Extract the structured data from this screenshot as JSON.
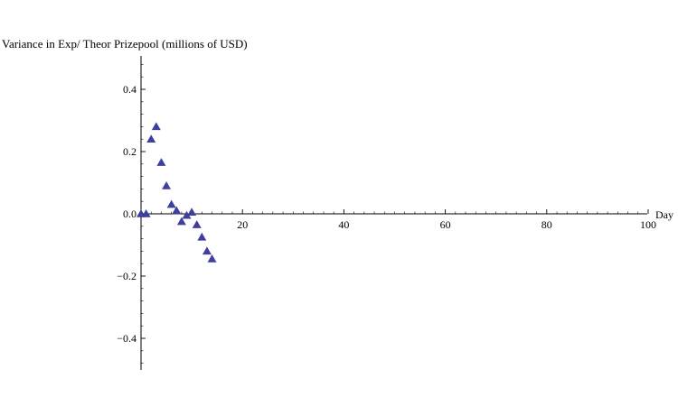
{
  "chart_data": {
    "type": "scatter",
    "title": "",
    "ylabel": "Variance in Exp/ Theor Prizepool (millions of USD)",
    "xlabel": "Day",
    "xlim": [
      0,
      100
    ],
    "ylim": [
      -0.5,
      0.5
    ],
    "x_ticks": [
      20,
      40,
      60,
      80,
      100
    ],
    "x_tick_labels": [
      "20",
      "40",
      "60",
      "80",
      "100"
    ],
    "y_ticks": [
      0.4,
      0.2,
      0.0,
      -0.2,
      -0.4
    ],
    "y_tick_labels": [
      "0.4",
      "0.2",
      "0.0",
      "−0.2",
      "−0.4"
    ],
    "grid": false,
    "marker": "triangle",
    "color": "#3f3f9e",
    "series": [
      {
        "x": [
          0,
          1,
          2,
          3,
          4,
          5,
          6,
          7,
          8,
          9,
          10,
          11,
          12,
          13,
          14
        ],
        "y": [
          0.0,
          0.0,
          0.24,
          0.28,
          0.165,
          0.09,
          0.03,
          0.01,
          -0.025,
          -0.005,
          0.005,
          -0.035,
          -0.075,
          -0.12,
          -0.145
        ]
      }
    ]
  }
}
